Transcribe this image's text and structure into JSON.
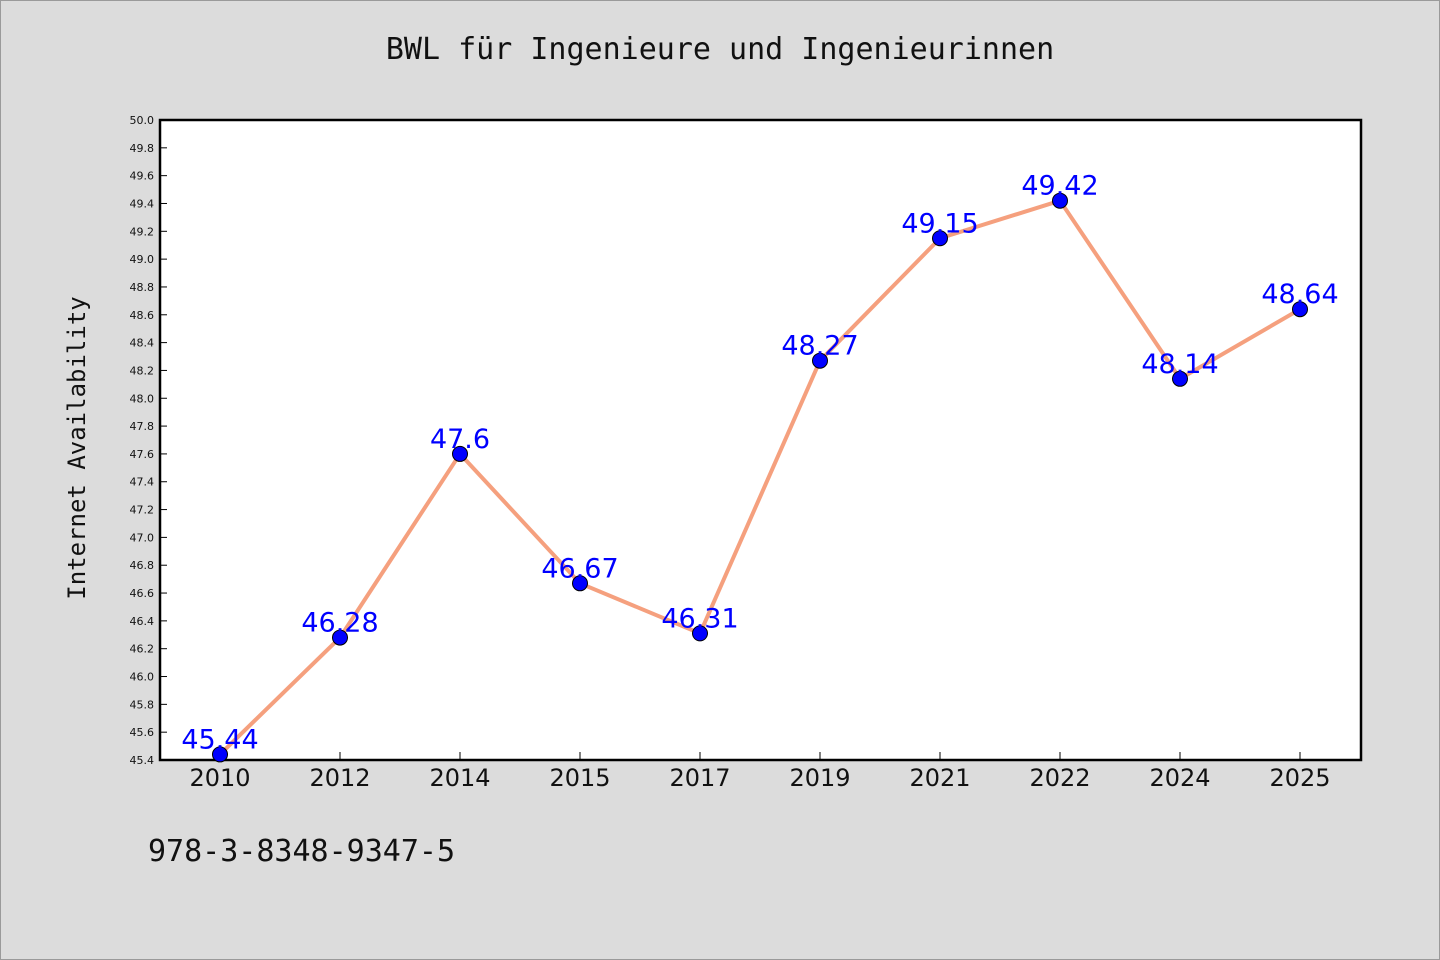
{
  "title": "BWL für Ingenieure und Ingenieurinnen",
  "isbn": "978-3-8348-9347-5",
  "colors": {
    "background": "#dcdcdc",
    "plot_background": "#ffffff",
    "line": "#f5a07e",
    "marker": "#0000ff",
    "data_label": "#0000ff"
  },
  "chart_data": {
    "type": "line",
    "title": "BWL für Ingenieure und Ingenieurinnen",
    "xlabel": "",
    "ylabel": "Internet Availability",
    "categories": [
      "2010",
      "2012",
      "2014",
      "2015",
      "2017",
      "2019",
      "2021",
      "2022",
      "2024",
      "2025"
    ],
    "series": [
      {
        "values": [
          45.44,
          46.28,
          47.6,
          46.67,
          46.31,
          48.27,
          49.15,
          49.42,
          48.14,
          48.64
        ],
        "labels": [
          "45.44",
          "46.28",
          "47.6",
          "46.67",
          "46.31",
          "48.27",
          "49.15",
          "49.42",
          "48.14",
          "48.64"
        ]
      }
    ],
    "ylim": [
      45.4,
      50.0
    ],
    "ytick_step": 0.2,
    "grid": false,
    "legend": "none"
  }
}
